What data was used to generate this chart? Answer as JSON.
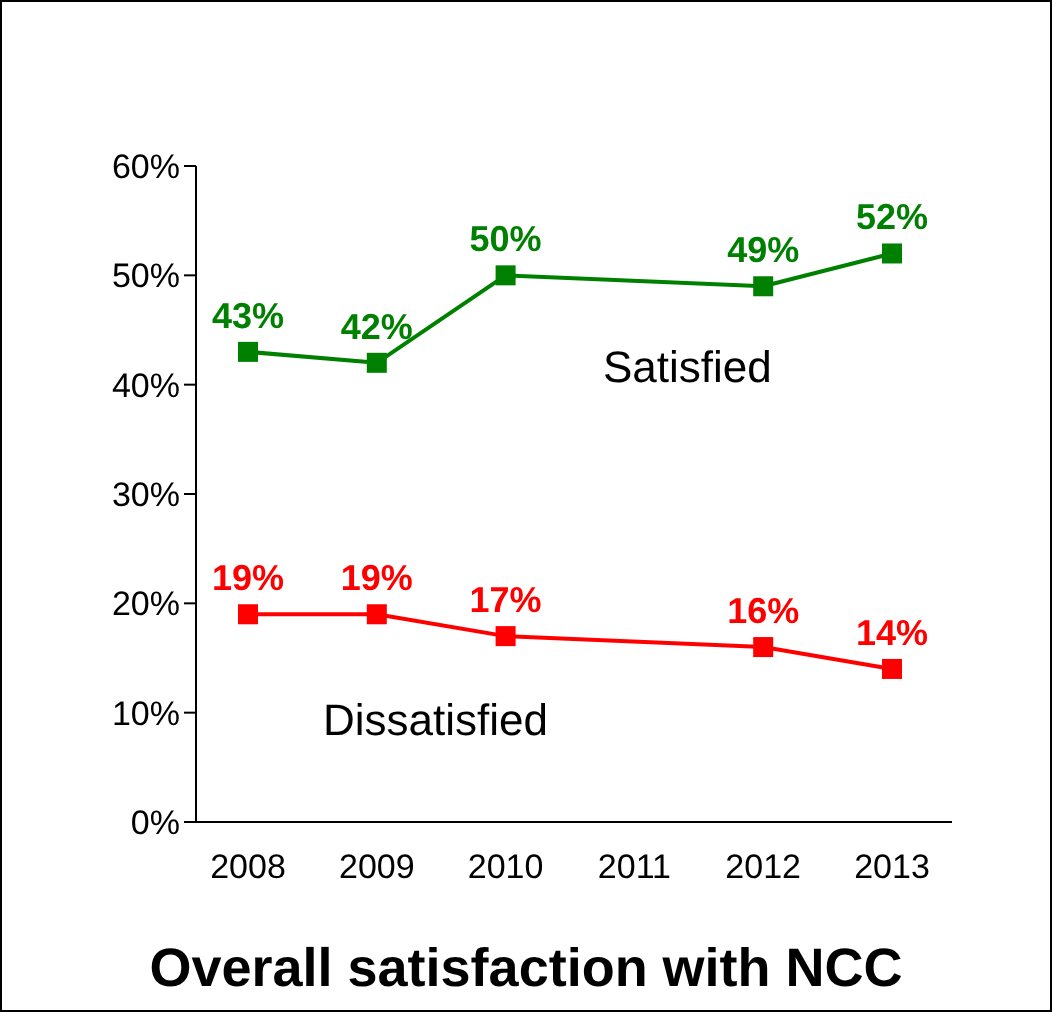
{
  "chart_data": {
    "type": "line",
    "title": "Overall satisfaction with NCC",
    "categories": [
      "2008",
      "2009",
      "2010",
      "2011",
      "2012",
      "2013"
    ],
    "series": [
      {
        "name": "Satisfied",
        "color": "#008000",
        "values": [
          43,
          42,
          50,
          null,
          49,
          52
        ],
        "value_labels": [
          "43%",
          "42%",
          "50%",
          null,
          "49%",
          "52%"
        ]
      },
      {
        "name": "Dissatisfied",
        "color": "#ff0000",
        "values": [
          19,
          19,
          17,
          null,
          16,
          14
        ],
        "value_labels": [
          "19%",
          "19%",
          "17%",
          null,
          "16%",
          "14%"
        ]
      }
    ],
    "ylim": [
      0,
      60
    ],
    "yticks": [
      {
        "value": 0,
        "label": "0%"
      },
      {
        "value": 10,
        "label": "10%"
      },
      {
        "value": 20,
        "label": "20%"
      },
      {
        "value": 30,
        "label": "30%"
      },
      {
        "value": 40,
        "label": "40%"
      },
      {
        "value": 50,
        "label": "50%"
      },
      {
        "value": 60,
        "label": "60%"
      }
    ],
    "grid": false,
    "legend": false,
    "marker": "square",
    "line_style": "solid"
  }
}
